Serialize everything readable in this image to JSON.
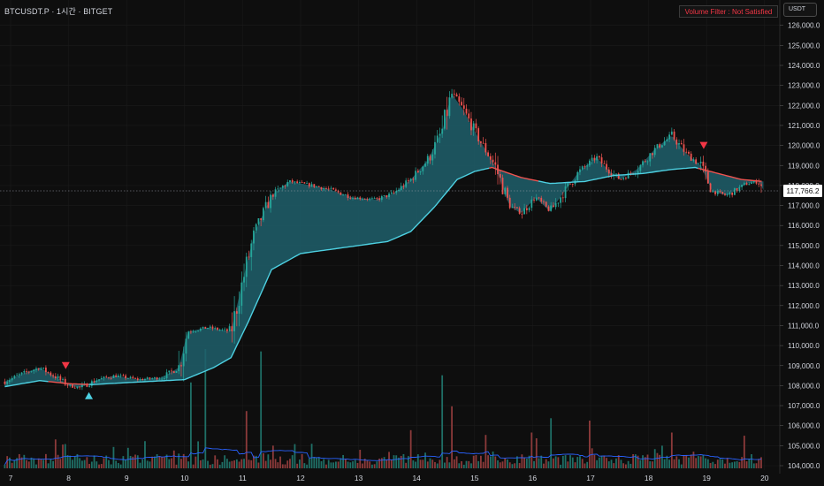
{
  "header": {
    "symbol_line": "BTCUSDT.P · 1시간 · BITGET",
    "filter_status": "Volume Filter : Not Satisfied",
    "currency": "USDT"
  },
  "current_price_label": "117,766.2",
  "colors": {
    "background": "#0e0e0e",
    "up": "#26a69a",
    "down": "#ef5350",
    "trend_up_line": "#4dd0e1",
    "trend_down_line": "#ef5350",
    "cloud_fill": "#1f5f6b",
    "volume_ma": "#2962ff",
    "text": "#d1d4dc",
    "grid": "#1b1b1b"
  },
  "chart_data": {
    "type": "candlestick",
    "x_tick_labels": [
      "7",
      "8",
      "9",
      "10",
      "11",
      "12",
      "13",
      "14",
      "15",
      "16",
      "17",
      "18",
      "19",
      "20"
    ],
    "y_tick_labels": [
      "126,000.0",
      "125,000.0",
      "124,000.0",
      "123,000.0",
      "122,000.0",
      "121,000.0",
      "120,000.0",
      "119,000.0",
      "118,000.0",
      "117,000.0",
      "116,000.0",
      "115,000.0",
      "114,000.0",
      "113,000.0",
      "112,000.0",
      "111,000.0",
      "110,000.0",
      "109,000.0",
      "108,000.0",
      "107,000.0",
      "106,000.0",
      "105,000.0",
      "104,000.0"
    ],
    "ylim": [
      103900,
      126500
    ],
    "price_path": [
      {
        "day": 6.9,
        "close": 108200
      },
      {
        "day": 7.2,
        "close": 108600
      },
      {
        "day": 7.5,
        "close": 108900
      },
      {
        "day": 7.8,
        "close": 108400
      },
      {
        "day": 8.0,
        "close": 108000
      },
      {
        "day": 8.2,
        "close": 107900
      },
      {
        "day": 8.5,
        "close": 108300
      },
      {
        "day": 8.8,
        "close": 108500
      },
      {
        "day": 9.2,
        "close": 108300
      },
      {
        "day": 9.6,
        "close": 108400
      },
      {
        "day": 9.9,
        "close": 108900
      },
      {
        "day": 10.05,
        "close": 110700
      },
      {
        "day": 10.4,
        "close": 110900
      },
      {
        "day": 10.8,
        "close": 110700
      },
      {
        "day": 11.0,
        "close": 113200
      },
      {
        "day": 11.2,
        "close": 115600
      },
      {
        "day": 11.5,
        "close": 117500
      },
      {
        "day": 11.8,
        "close": 118200
      },
      {
        "day": 12.2,
        "close": 118000
      },
      {
        "day": 12.5,
        "close": 117800
      },
      {
        "day": 12.9,
        "close": 117400
      },
      {
        "day": 13.3,
        "close": 117300
      },
      {
        "day": 13.6,
        "close": 117600
      },
      {
        "day": 13.9,
        "close": 118300
      },
      {
        "day": 14.2,
        "close": 119300
      },
      {
        "day": 14.45,
        "close": 120800
      },
      {
        "day": 14.6,
        "close": 122600
      },
      {
        "day": 14.8,
        "close": 121800
      },
      {
        "day": 15.1,
        "close": 120200
      },
      {
        "day": 15.35,
        "close": 119000
      },
      {
        "day": 15.6,
        "close": 117000
      },
      {
        "day": 15.8,
        "close": 116600
      },
      {
        "day": 16.05,
        "close": 117400
      },
      {
        "day": 16.3,
        "close": 116700
      },
      {
        "day": 16.6,
        "close": 117900
      },
      {
        "day": 16.8,
        "close": 118700
      },
      {
        "day": 17.1,
        "close": 119400
      },
      {
        "day": 17.3,
        "close": 118800
      },
      {
        "day": 17.5,
        "close": 118300
      },
      {
        "day": 17.8,
        "close": 118800
      },
      {
        "day": 18.1,
        "close": 119800
      },
      {
        "day": 18.4,
        "close": 120500
      },
      {
        "day": 18.65,
        "close": 119600
      },
      {
        "day": 18.9,
        "close": 119000
      },
      {
        "day": 19.1,
        "close": 117700
      },
      {
        "day": 19.35,
        "close": 117500
      },
      {
        "day": 19.7,
        "close": 118100
      },
      {
        "day": 19.9,
        "close": 118200
      },
      {
        "day": 19.98,
        "close": 117766.2
      }
    ],
    "trend_line": [
      {
        "day": 6.9,
        "value": 107950
      },
      {
        "day": 7.5,
        "value": 108250
      },
      {
        "day": 8.0,
        "value": 108100
      },
      {
        "day": 8.4,
        "value": 108050
      },
      {
        "day": 9.0,
        "value": 108150
      },
      {
        "day": 10.0,
        "value": 108300
      },
      {
        "day": 10.5,
        "value": 108900
      },
      {
        "day": 10.8,
        "value": 109400
      },
      {
        "day": 11.1,
        "value": 111200
      },
      {
        "day": 11.5,
        "value": 113800
      },
      {
        "day": 12.0,
        "value": 114600
      },
      {
        "day": 12.5,
        "value": 114800
      },
      {
        "day": 13.0,
        "value": 115000
      },
      {
        "day": 13.5,
        "value": 115200
      },
      {
        "day": 13.9,
        "value": 115700
      },
      {
        "day": 14.3,
        "value": 116900
      },
      {
        "day": 14.7,
        "value": 118300
      },
      {
        "day": 15.0,
        "value": 118700
      },
      {
        "day": 15.3,
        "value": 118900
      },
      {
        "day": 15.8,
        "value": 118400
      },
      {
        "day": 16.3,
        "value": 118100
      },
      {
        "day": 16.9,
        "value": 118200
      },
      {
        "day": 17.4,
        "value": 118500
      },
      {
        "day": 17.9,
        "value": 118600
      },
      {
        "day": 18.4,
        "value": 118800
      },
      {
        "day": 18.8,
        "value": 118900
      },
      {
        "day": 19.2,
        "value": 118600
      },
      {
        "day": 19.6,
        "value": 118300
      },
      {
        "day": 19.98,
        "value": 118200
      }
    ],
    "trend_line_down_segments": [
      [
        7.6,
        8.35
      ],
      [
        15.25,
        16.1
      ],
      [
        18.85,
        19.98
      ]
    ],
    "signals": [
      {
        "type": "sell",
        "day": 7.95,
        "price": 109000
      },
      {
        "type": "buy",
        "day": 8.35,
        "price": 107500
      },
      {
        "type": "sell",
        "day": 18.95,
        "price": 120000
      }
    ],
    "volume_max": 100,
    "volume_spikes": [
      {
        "day": 10.1,
        "value": 72
      },
      {
        "day": 10.35,
        "value": 100
      },
      {
        "day": 11.05,
        "value": 48
      },
      {
        "day": 11.3,
        "value": 98
      },
      {
        "day": 13.9,
        "value": 32
      },
      {
        "day": 14.45,
        "value": 78
      },
      {
        "day": 14.6,
        "value": 52
      },
      {
        "day": 15.2,
        "value": 28
      },
      {
        "day": 16.0,
        "value": 30
      },
      {
        "day": 16.3,
        "value": 42
      },
      {
        "day": 17.0,
        "value": 40
      },
      {
        "day": 18.4,
        "value": 30
      }
    ]
  }
}
